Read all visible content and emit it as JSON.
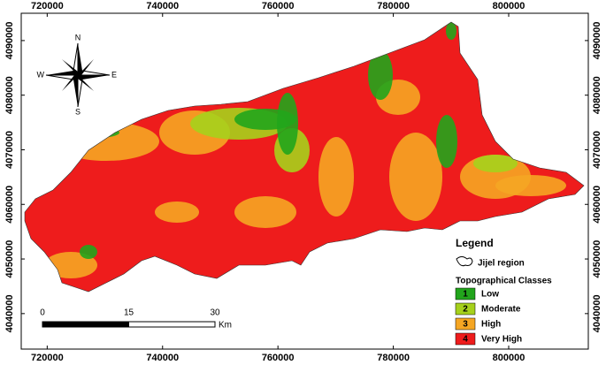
{
  "map": {
    "xlim": [
      715500,
      813800
    ],
    "ylim": [
      4033500,
      4095000
    ],
    "xticks": [
      720000,
      740000,
      760000,
      780000,
      800000
    ],
    "yticks": [
      4040000,
      4050000,
      4060000,
      4070000,
      4080000,
      4090000
    ],
    "compass": {
      "north": "N",
      "south": "S",
      "east": "E",
      "west": "W"
    },
    "scale_bar": {
      "ticks": [
        0,
        15,
        30
      ],
      "unit": "Km"
    },
    "legend": {
      "title": "Legend",
      "boundary": "Jijel region",
      "classes_title": "Topographical Classes",
      "classes": [
        {
          "code": 1,
          "label": "Low",
          "color": "#22a51c"
        },
        {
          "code": 2,
          "label": "Moderate",
          "color": "#a6d11c"
        },
        {
          "code": 3,
          "label": "High",
          "color": "#f5a623"
        },
        {
          "code": 4,
          "label": "Very High",
          "color": "#ee1c1c"
        }
      ]
    }
  }
}
